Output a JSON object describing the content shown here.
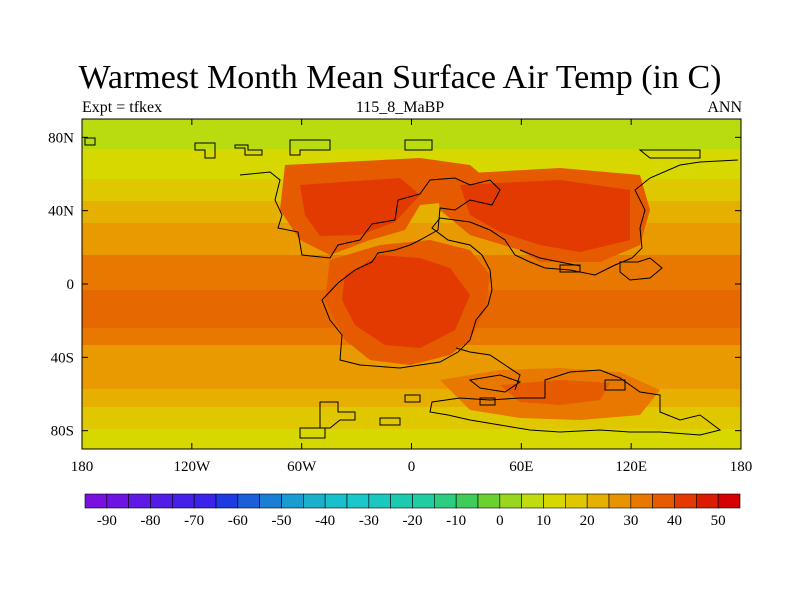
{
  "title": "Warmest Month Mean Surface Air Temp (in C)",
  "left_string": "Expt = tfkex",
  "center_string": "115_8_MaBP",
  "right_string": "ANN",
  "map": {
    "variable": "warmest month mean surface air temperature",
    "units": "C",
    "lon_range": [
      -180,
      180
    ],
    "lat_range": [
      -90,
      90
    ],
    "x_tick_labels": [
      "180",
      "120W",
      "60W",
      "0",
      "60E",
      "120E",
      "180"
    ],
    "x_tick_values": [
      -180,
      -120,
      -60,
      0,
      60,
      120,
      180
    ],
    "y_tick_labels": [
      "80N",
      "40N",
      "0",
      "40S",
      "80S"
    ],
    "y_tick_values": [
      80,
      40,
      0,
      -40,
      -80
    ],
    "features": [
      "temperature shading (filled contours)",
      "coastline outlines"
    ]
  },
  "colorbar": {
    "labels": [
      "-90",
      "-80",
      "-70",
      "-60",
      "-50",
      "-40",
      "-30",
      "-20",
      "-10",
      "0",
      "10",
      "20",
      "30",
      "40",
      "50"
    ],
    "boundaries": [
      -90,
      -85,
      -80,
      -75,
      -70,
      -65,
      -60,
      -55,
      -50,
      -45,
      -40,
      -35,
      -30,
      -25,
      -20,
      -15,
      -10,
      -5,
      0,
      5,
      10,
      15,
      20,
      25,
      30,
      35,
      40,
      45,
      50
    ],
    "colors": [
      "#7a10e0",
      "#6d14e2",
      "#6018e4",
      "#521ce6",
      "#4620e8",
      "#3a24ea",
      "#1d3be0",
      "#1a5ed8",
      "#1a7fd2",
      "#1a9cd0",
      "#1ab0cc",
      "#1abfcc",
      "#1ac8cc",
      "#1ac8c0",
      "#1acbb0",
      "#20cda0",
      "#2ccd80",
      "#40cc5a",
      "#6bd030",
      "#98d620",
      "#c0dc10",
      "#d6d800",
      "#e0c800",
      "#e6b000",
      "#e89400",
      "#e87800",
      "#e65a00",
      "#e23a00",
      "#dc1c00",
      "#d60000"
    ]
  }
}
